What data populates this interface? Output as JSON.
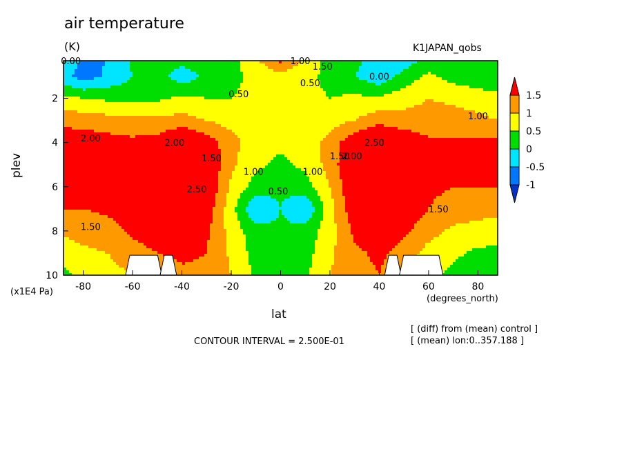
{
  "chart_data": {
    "type": "heatmap",
    "title": "air temperature",
    "units": "(K)",
    "run_label": "K1JAPAN_qobs",
    "xlabel": "lat",
    "x_units": "(degrees_north)",
    "ylabel": "plev",
    "y_units": "(x1E4 Pa)",
    "xlim": [
      -88,
      88
    ],
    "ylim": [
      10,
      0.3
    ],
    "x_ticks": [
      "-80",
      "-60",
      "-40",
      "-20",
      "0",
      "20",
      "40",
      "60",
      "80"
    ],
    "x_tick_values": [
      -80,
      -60,
      -40,
      -20,
      0,
      20,
      40,
      60,
      80
    ],
    "y_ticks": [
      "2",
      "4",
      "6",
      "8",
      "10"
    ],
    "y_tick_values": [
      2,
      4,
      6,
      8,
      10
    ],
    "contour_interval_text": "CONTOUR INTERVAL = 2.500E-01",
    "notes": [
      "[ (diff) from (mean) control ]",
      "[ (mean) lon:0..357.188 ]"
    ],
    "colorbar": {
      "labels": [
        "1.5",
        "1",
        "0.5",
        "0",
        "-0.5",
        "-1"
      ],
      "levels": [
        1.5,
        1,
        0.5,
        0,
        -0.5,
        -1
      ],
      "colors": [
        "#ff0000",
        "#ff9900",
        "#ffff00",
        "#00dd00",
        "#00e5ff",
        "#0077ff",
        "#0033cc"
      ]
    },
    "grid_lat": [
      -88,
      -80,
      -70,
      -60,
      -50,
      -40,
      -30,
      -20,
      -10,
      0,
      10,
      20,
      30,
      40,
      50,
      60,
      70,
      80,
      88
    ],
    "grid_plev": [
      0.3,
      1.0,
      2.0,
      3.0,
      4.0,
      5.0,
      6.0,
      7.0,
      8.0,
      9.0,
      10.0
    ],
    "values": [
      [
        0.1,
        -0.6,
        -0.5,
        0.1,
        0.3,
        0.2,
        0.3,
        0.3,
        0.9,
        1.6,
        0.9,
        0.3,
        0.2,
        -0.5,
        -0.3,
        0.2,
        0.1,
        0.0,
        0.1
      ],
      [
        -0.3,
        -0.8,
        -0.4,
        0.0,
        0.2,
        -0.3,
        0.1,
        0.4,
        0.6,
        0.8,
        0.6,
        0.4,
        0.0,
        -0.4,
        0.2,
        0.6,
        0.3,
        0.1,
        0.0
      ],
      [
        0.6,
        0.5,
        0.4,
        0.3,
        0.4,
        0.6,
        0.5,
        0.5,
        0.6,
        0.6,
        0.6,
        0.5,
        0.6,
        0.6,
        0.8,
        1.0,
        0.9,
        0.8,
        0.7
      ],
      [
        1.3,
        1.3,
        1.2,
        1.2,
        1.1,
        1.2,
        1.0,
        0.8,
        0.6,
        0.6,
        0.6,
        0.8,
        1.0,
        1.3,
        1.2,
        1.2,
        1.2,
        1.1,
        1.0
      ],
      [
        1.9,
        1.8,
        1.7,
        1.6,
        1.7,
        2.2,
        1.8,
        1.2,
        0.7,
        0.6,
        0.7,
        1.2,
        1.9,
        2.3,
        1.9,
        1.6,
        1.6,
        1.6,
        1.6
      ],
      [
        2.1,
        1.8,
        1.7,
        1.7,
        2.0,
        2.6,
        2.0,
        1.1,
        0.6,
        0.4,
        0.6,
        1.2,
        2.1,
        2.7,
        2.1,
        1.7,
        1.6,
        1.6,
        1.6
      ],
      [
        1.8,
        1.7,
        1.6,
        1.7,
        2.1,
        2.5,
        2.0,
        0.9,
        0.3,
        0.1,
        0.3,
        1.0,
        2.0,
        2.5,
        2.0,
        1.6,
        1.5,
        1.5,
        1.5
      ],
      [
        1.5,
        1.5,
        1.6,
        1.7,
        2.0,
        2.3,
        1.8,
        0.7,
        -0.5,
        0.0,
        -0.5,
        0.8,
        1.9,
        2.3,
        1.9,
        1.5,
        1.3,
        1.2,
        1.2
      ],
      [
        1.1,
        1.2,
        1.3,
        1.6,
        1.8,
        2.0,
        1.6,
        0.8,
        0.2,
        0.1,
        0.2,
        0.8,
        1.6,
        1.9,
        1.6,
        1.2,
        0.9,
        0.8,
        0.7
      ],
      [
        0.7,
        0.9,
        1.0,
        1.3,
        1.5,
        1.6,
        1.5,
        0.9,
        0.3,
        0.2,
        0.3,
        0.9,
        1.4,
        1.6,
        1.3,
        0.8,
        0.6,
        0.4,
        0.4
      ],
      [
        0.4,
        0.6,
        0.8,
        1.0,
        1.2,
        1.4,
        1.4,
        1.0,
        0.4,
        0.3,
        0.4,
        1.0,
        1.3,
        1.5,
        1.1,
        0.6,
        0.4,
        0.1,
        0.1
      ]
    ],
    "masked_regions": [
      {
        "lat": [
          -62,
          -49
        ],
        "plev": [
          9.1,
          10
        ]
      },
      {
        "lat": [
          -48,
          -43
        ],
        "plev": [
          9.1,
          10
        ]
      },
      {
        "lat": [
          43,
          48
        ],
        "plev": [
          9.1,
          10
        ]
      },
      {
        "lat": [
          49,
          65
        ],
        "plev": [
          9.1,
          10
        ]
      }
    ],
    "contour_labels": [
      {
        "text": "0.00",
        "lat": -85,
        "plev": 0.3
      },
      {
        "text": "1.00",
        "lat": 8,
        "plev": 0.3
      },
      {
        "text": "1.50",
        "lat": 17,
        "plev": 0.55
      },
      {
        "text": "0.00",
        "lat": 40,
        "plev": 1.0
      },
      {
        "text": "0.50",
        "lat": 12,
        "plev": 1.3
      },
      {
        "text": "0.50",
        "lat": -17,
        "plev": 1.8
      },
      {
        "text": "1.00",
        "lat": 80,
        "plev": 2.8
      },
      {
        "text": "2.00",
        "lat": -77,
        "plev": 3.8
      },
      {
        "text": "2.00",
        "lat": -43,
        "plev": 4.0
      },
      {
        "text": "1.50",
        "lat": -28,
        "plev": 4.7
      },
      {
        "text": "2.50",
        "lat": 38,
        "plev": 4.0
      },
      {
        "text": "1.50",
        "lat": 24,
        "plev": 4.6
      },
      {
        "text": "2.00",
        "lat": 29,
        "plev": 4.6
      },
      {
        "text": "1.00",
        "lat": -11,
        "plev": 5.3
      },
      {
        "text": "1.00",
        "lat": 13,
        "plev": 5.3
      },
      {
        "text": "2.50",
        "lat": -34,
        "plev": 6.1
      },
      {
        "text": "0.50",
        "lat": -1,
        "plev": 6.2
      },
      {
        "text": "1.50",
        "lat": 64,
        "plev": 7.0
      },
      {
        "text": "1.50",
        "lat": -77,
        "plev": 7.8
      }
    ]
  }
}
